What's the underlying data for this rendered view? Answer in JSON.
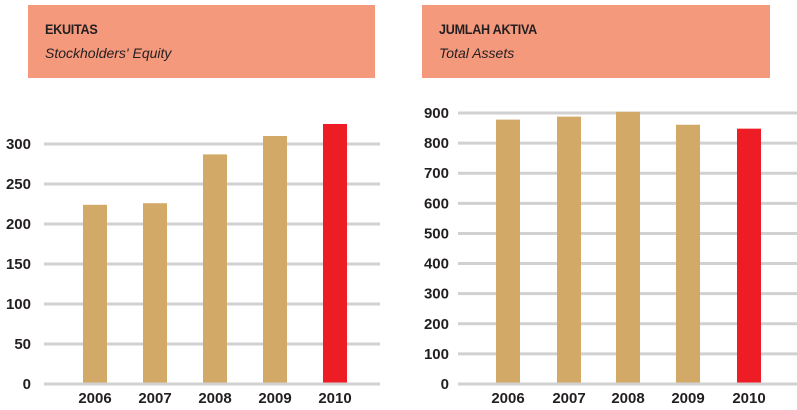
{
  "chart_data": [
    {
      "type": "bar",
      "title": "EKUITAS",
      "subtitle": "Stockholders' Equity",
      "categories": [
        "2006",
        "2007",
        "2008",
        "2009",
        "2010"
      ],
      "values": [
        224,
        226,
        287,
        310,
        325
      ],
      "yticks": [
        0,
        50,
        100,
        150,
        200,
        250,
        300
      ],
      "ylim": [
        0,
        300
      ],
      "grid": true,
      "colors": [
        "#D2A967",
        "#D2A967",
        "#D2A967",
        "#D2A967",
        "#EE1C25"
      ]
    },
    {
      "type": "bar",
      "title": "JUMLAH AKTIVA",
      "subtitle": "Total Assets",
      "categories": [
        "2006",
        "2007",
        "2008",
        "2009",
        "2010"
      ],
      "values": [
        878,
        888,
        904,
        861,
        848
      ],
      "yticks": [
        0,
        100,
        200,
        300,
        400,
        500,
        600,
        700,
        800,
        900
      ],
      "ylim": [
        0,
        900
      ],
      "grid": true,
      "colors": [
        "#D2A967",
        "#D2A967",
        "#D2A967",
        "#D2A967",
        "#EE1C25"
      ]
    }
  ]
}
